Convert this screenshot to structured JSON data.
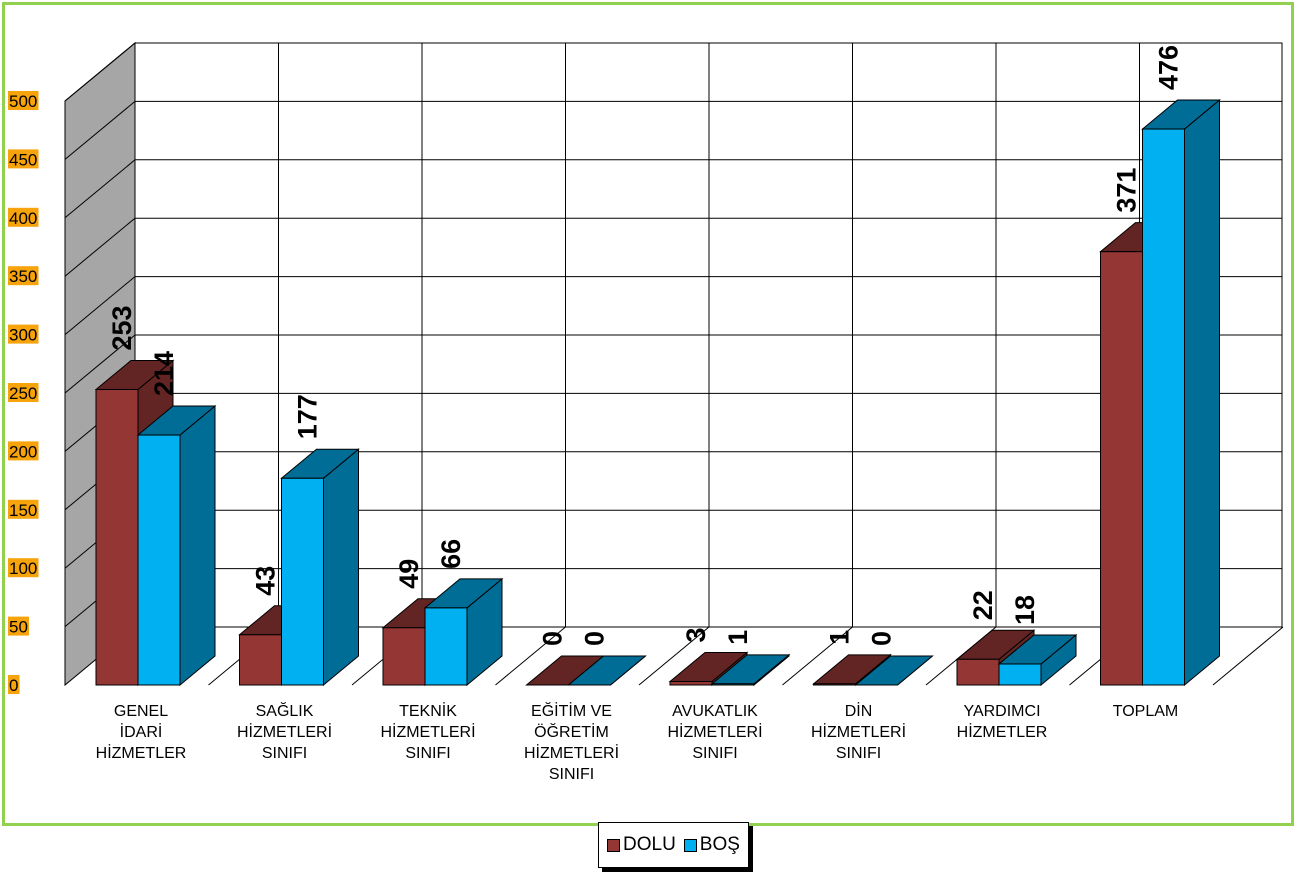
{
  "chart_data": {
    "type": "bar",
    "categories": [
      [
        "GENEL",
        "İDARİ",
        "HİZMETLER"
      ],
      [
        "SAĞLIK",
        "HİZMETLERİ",
        "SINIFI"
      ],
      [
        "TEKNİK",
        "HİZMETLERİ",
        "SINIFI"
      ],
      [
        "EĞİTİM VE",
        "ÖĞRETİM",
        "HİZMETLERİ",
        "SINIFI"
      ],
      [
        "AVUKATLIK",
        "HİZMETLERİ",
        "SINIFI"
      ],
      [
        "DİN",
        "HİZMETLERİ",
        "SINIFI"
      ],
      [
        "YARDIMCI",
        "HİZMETLER"
      ],
      [
        "TOPLAM"
      ]
    ],
    "series": [
      {
        "name": "DOLU",
        "values": [
          253,
          43,
          49,
          0,
          3,
          1,
          22,
          371
        ],
        "color": "#943634",
        "side_color": "#632523"
      },
      {
        "name": "BOŞ",
        "values": [
          214,
          177,
          66,
          0,
          1,
          0,
          18,
          476
        ],
        "color": "#00b0f0",
        "side_color": "#006d96"
      }
    ],
    "ylim": [
      0,
      500
    ],
    "yticks": [
      "0",
      "50",
      "100",
      "150",
      "200",
      "250",
      "300",
      "350",
      "400",
      "450",
      "500"
    ],
    "grid": true,
    "legend_position": "bottom",
    "tick_label_background": "#f7a30b"
  }
}
